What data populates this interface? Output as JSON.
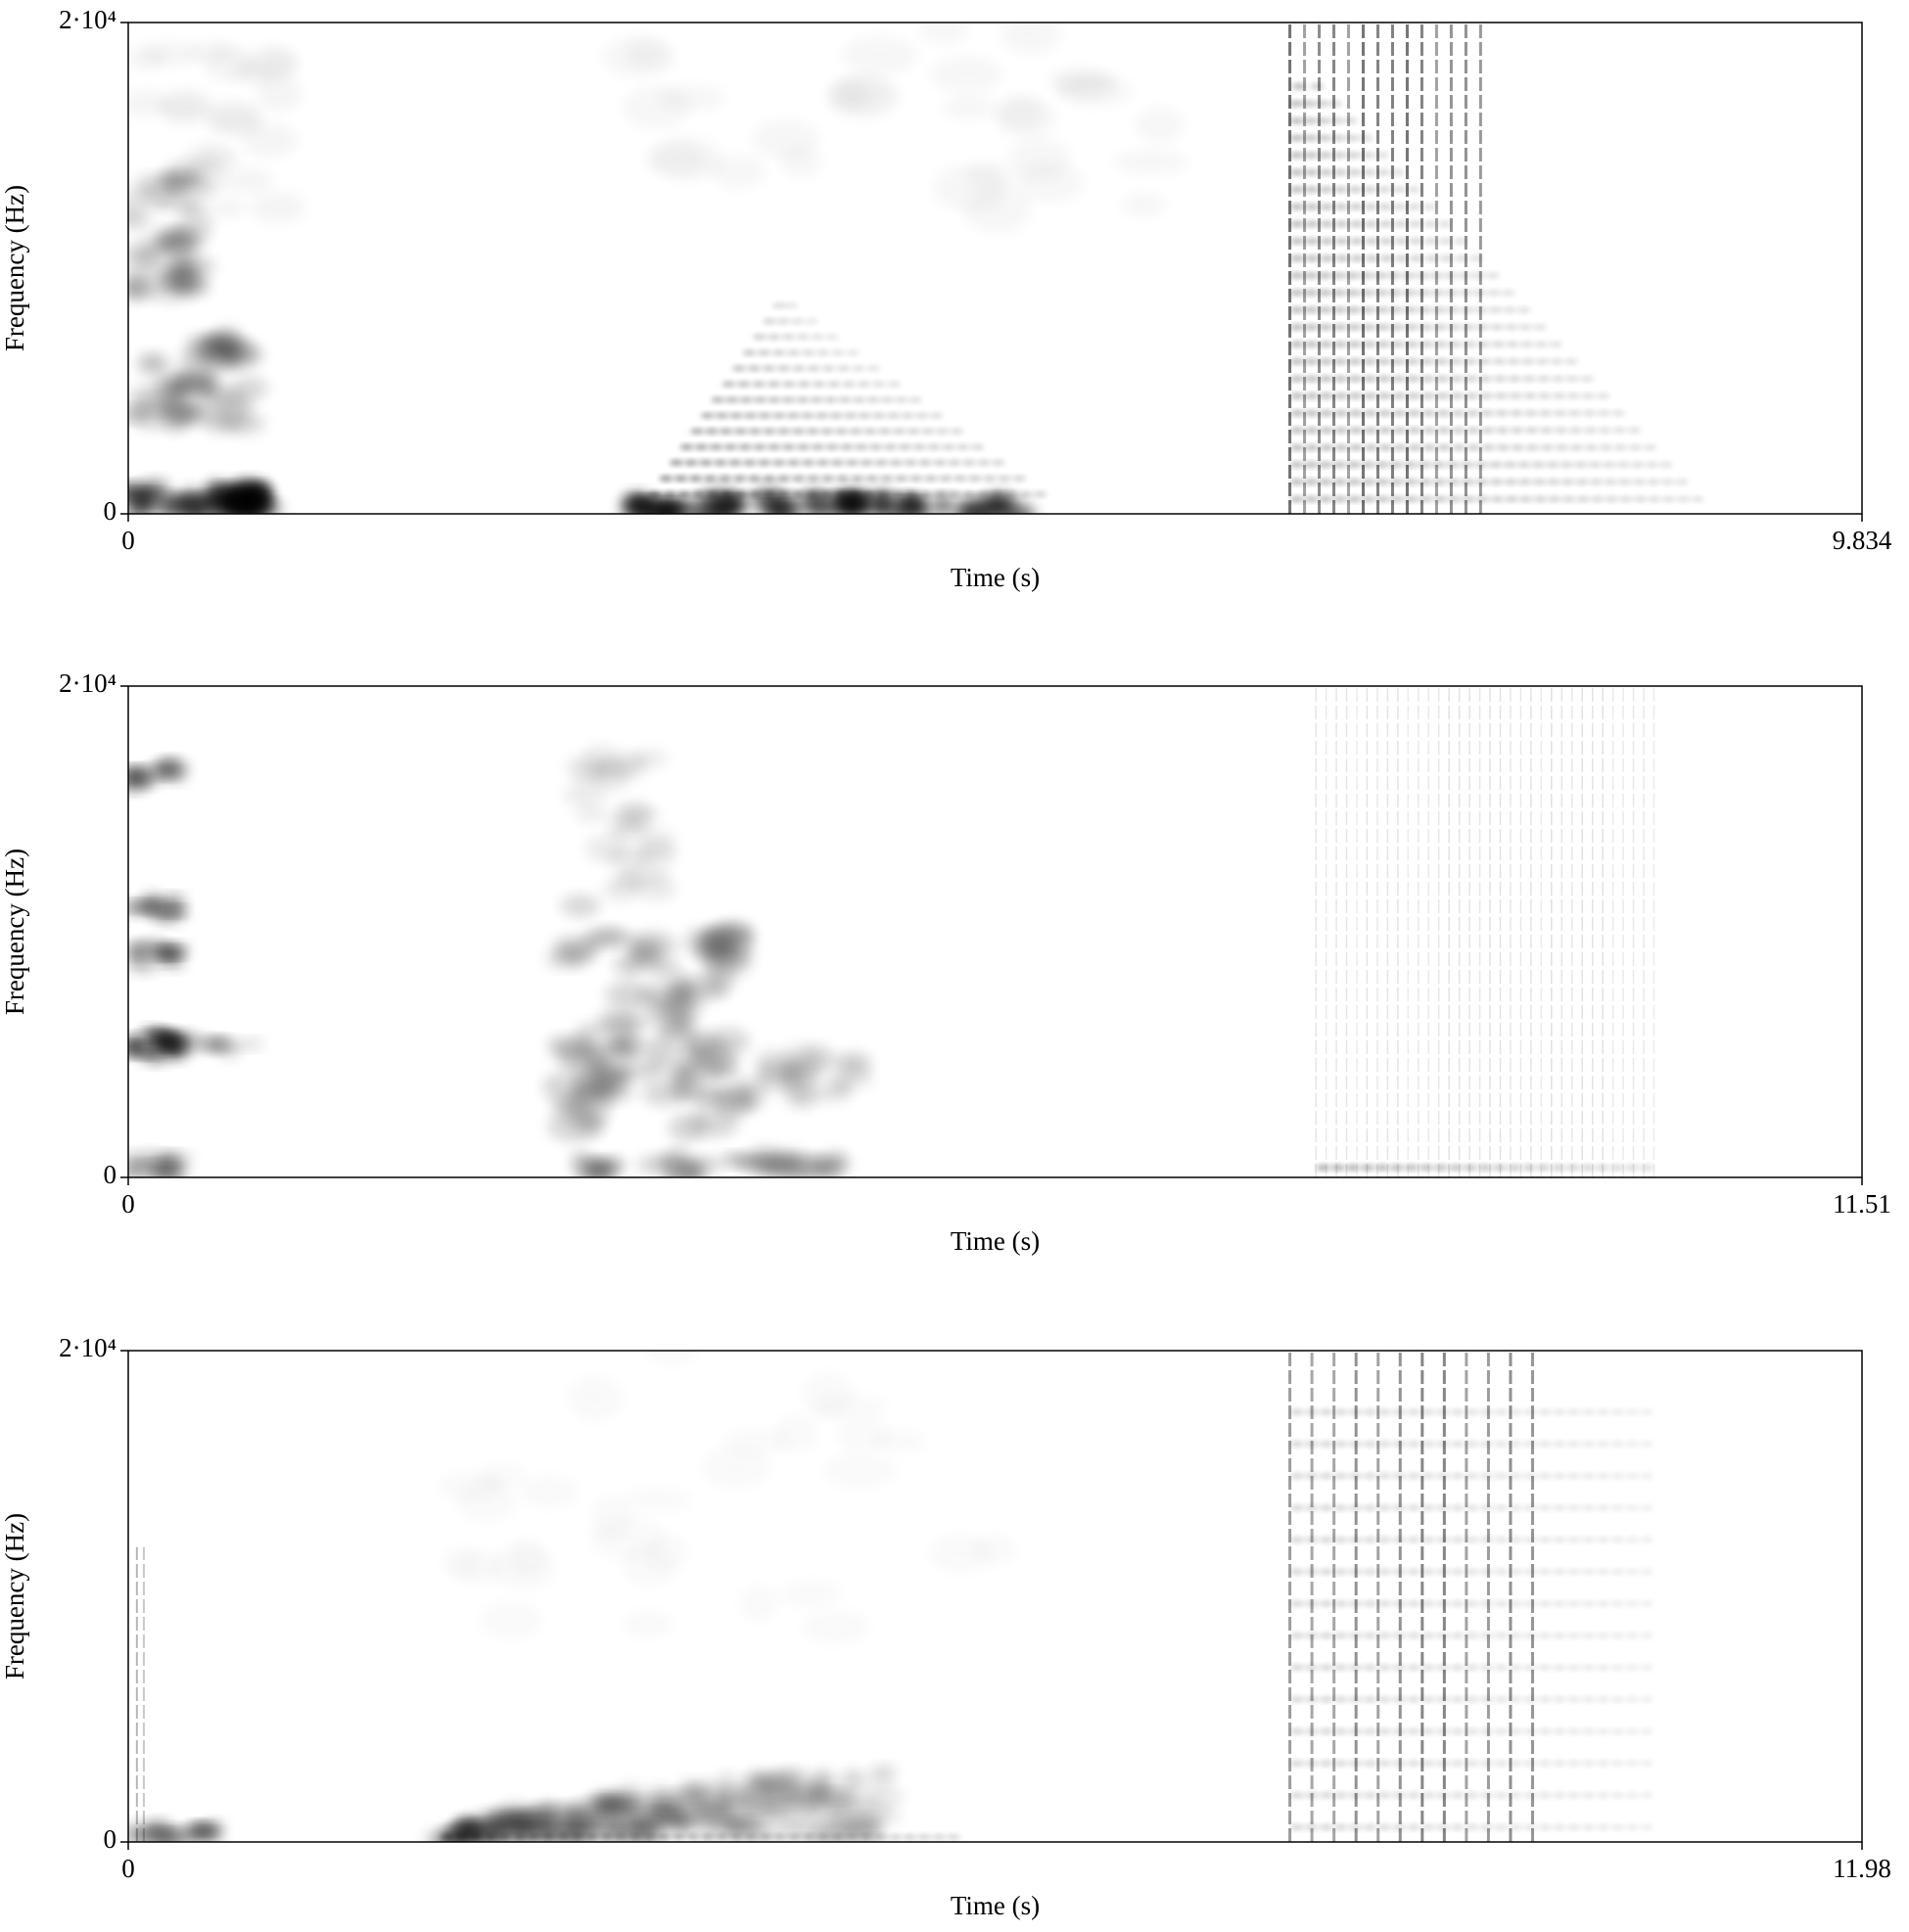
{
  "chart_data": [
    {
      "type": "spectrogram",
      "xlabel": "Time (s)",
      "ylabel": "Frequency (Hz)",
      "xlim": [
        0,
        9.834
      ],
      "ylim": [
        0,
        20000
      ],
      "xticks": [
        0,
        9.834
      ],
      "yticks": [
        0,
        {
          "value": 20000,
          "label": "2·10⁴"
        }
      ]
    },
    {
      "type": "spectrogram",
      "xlabel": "Time (s)",
      "ylabel": "Frequency (Hz)",
      "xlim": [
        0,
        11.51
      ],
      "ylim": [
        0,
        20000
      ],
      "xticks": [
        0,
        11.51
      ],
      "yticks": [
        0,
        {
          "value": 20000,
          "label": "2·10⁴"
        }
      ]
    },
    {
      "type": "spectrogram",
      "xlabel": "Time (s)",
      "ylabel": "Frequency (Hz)",
      "xlim": [
        0,
        11.98
      ],
      "ylim": [
        0,
        20000
      ],
      "xticks": [
        0,
        11.98
      ],
      "yticks": [
        0,
        {
          "value": 20000,
          "label": "2·10⁴"
        }
      ]
    }
  ]
}
